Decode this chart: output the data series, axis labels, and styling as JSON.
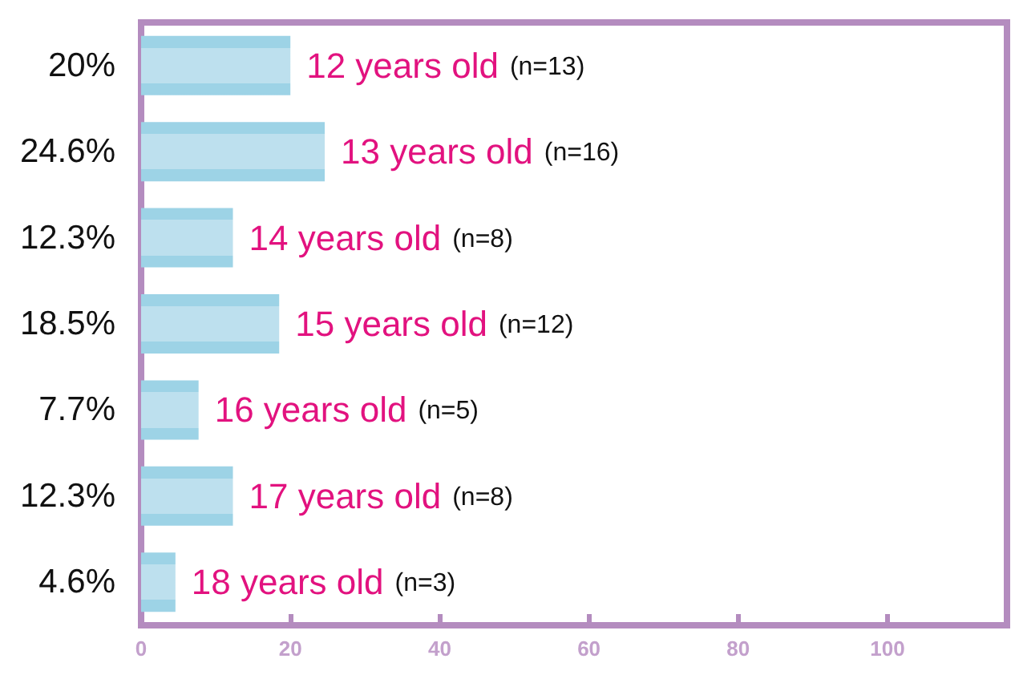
{
  "chart_data": {
    "type": "bar",
    "orientation": "horizontal",
    "categories": [
      "12 years old (n=13)",
      "13 years old (n=16)",
      "14 years old (n=8)",
      "15 years old (n=12)",
      "16 years old (n=5)",
      "17 years old (n=8)",
      "18 years old (n=3)"
    ],
    "values": [
      20,
      24.6,
      12.3,
      18.5,
      7.7,
      12.3,
      4.6
    ],
    "value_labels": [
      "20%",
      "24.6%",
      "12.3%",
      "18.5%",
      "7.7%",
      "12.3%",
      "4.6%"
    ],
    "color": "#bde0ee",
    "xlim": [
      0,
      116
    ],
    "xticks": [
      0,
      20,
      40,
      60,
      80,
      100
    ],
    "grid": false
  }
}
